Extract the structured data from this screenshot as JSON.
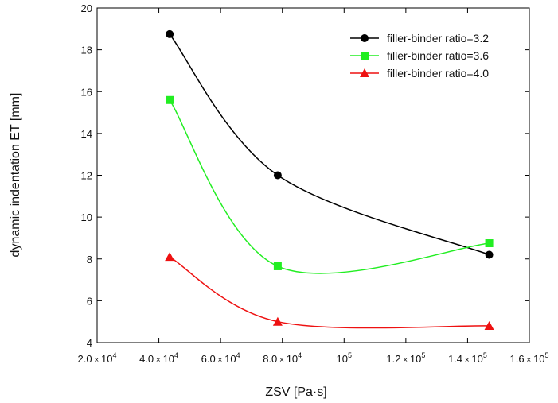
{
  "chart_data": {
    "type": "line",
    "title": "",
    "xlabel": "ZSV [Pa·s]",
    "ylabel": "dynamic indentation ET [mm]",
    "xlim": [
      20000,
      160000
    ],
    "ylim": [
      4,
      20
    ],
    "x_ticks": [
      {
        "value": 20000,
        "mantissa": "2.0",
        "sep": " × ",
        "base": "10",
        "exp": "4"
      },
      {
        "value": 40000,
        "mantissa": "4.0",
        "sep": " × ",
        "base": "10",
        "exp": "4"
      },
      {
        "value": 60000,
        "mantissa": "6.0",
        "sep": " × ",
        "base": "10",
        "exp": "4"
      },
      {
        "value": 80000,
        "mantissa": "8.0",
        "sep": " × ",
        "base": "10",
        "exp": "4"
      },
      {
        "value": 100000,
        "mantissa": "",
        "sep": "",
        "base": "10",
        "exp": "5"
      },
      {
        "value": 120000,
        "mantissa": "1.2",
        "sep": " × ",
        "base": "10",
        "exp": "5"
      },
      {
        "value": 140000,
        "mantissa": "1.4",
        "sep": " × ",
        "base": "10",
        "exp": "5"
      },
      {
        "value": 160000,
        "mantissa": "1.6",
        "sep": " × ",
        "base": "10",
        "exp": "5"
      }
    ],
    "y_ticks": [
      {
        "value": 4,
        "label": "4"
      },
      {
        "value": 6,
        "label": "6"
      },
      {
        "value": 8,
        "label": "8"
      },
      {
        "value": 10,
        "label": "10"
      },
      {
        "value": 12,
        "label": "12"
      },
      {
        "value": 14,
        "label": "14"
      },
      {
        "value": 16,
        "label": "16"
      },
      {
        "value": 18,
        "label": "18"
      },
      {
        "value": 20,
        "label": "20"
      }
    ],
    "legend_position": "top-right",
    "series": [
      {
        "name": "filler-binder ratio=3.2",
        "color": "#000000",
        "marker": "circle",
        "x": [
          43500,
          78500,
          147000
        ],
        "y": [
          18.75,
          12.0,
          8.2
        ]
      },
      {
        "name": "filler-binder ratio=3.6",
        "color": "#22ee22",
        "marker": "square",
        "x": [
          43500,
          78500,
          147000
        ],
        "y": [
          15.6,
          7.65,
          8.75
        ]
      },
      {
        "name": "filler-binder ratio=4.0",
        "color": "#ee1111",
        "marker": "triangle",
        "x": [
          43500,
          78500,
          147000
        ],
        "y": [
          8.1,
          5.0,
          4.8
        ]
      }
    ]
  }
}
